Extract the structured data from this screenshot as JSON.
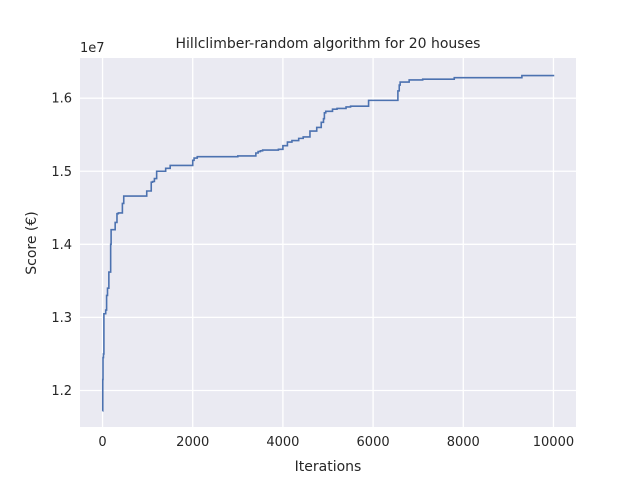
{
  "chart_data": {
    "type": "line",
    "title": "Hillclimber-random algorithm for 20 houses",
    "xlabel": "Iterations",
    "ylabel": "Score (€)",
    "y_offset_text": "1e7",
    "xlim": [
      -500,
      10500
    ],
    "ylim": [
      11500000,
      16550000
    ],
    "x_ticks": [
      0,
      2000,
      4000,
      6000,
      8000,
      10000
    ],
    "x_tick_labels": [
      "0",
      "2000",
      "4000",
      "6000",
      "8000",
      "10000"
    ],
    "y_ticks": [
      12000000,
      13000000,
      14000000,
      15000000,
      16000000
    ],
    "y_tick_labels": [
      "1.2",
      "1.3",
      "1.4",
      "1.5",
      "1.6"
    ],
    "grid": true,
    "background": "#eaeaf2",
    "line_color": "#4c72b0",
    "series": [
      {
        "step": "post",
        "x": [
          0,
          5,
          10,
          20,
          30,
          60,
          70,
          90,
          110,
          140,
          180,
          190,
          280,
          320,
          350,
          440,
          470,
          500,
          980,
          1080,
          1110,
          1150,
          1200,
          1400,
          1500,
          2000,
          2030,
          2100,
          3000,
          3050,
          3400,
          3450,
          3500,
          3550,
          3900,
          4000,
          4100,
          4200,
          4350,
          4450,
          4600,
          4750,
          4850,
          4900,
          4920,
          4950,
          5100,
          5200,
          5400,
          5500,
          5900,
          6000,
          6550,
          6580,
          6600,
          6800,
          7100,
          7800,
          9300,
          10000
        ],
        "y": [
          11720000,
          12150000,
          12450000,
          12500000,
          13050000,
          13050000,
          13100000,
          13300000,
          13400000,
          13620000,
          14000000,
          14200000,
          14300000,
          14420000,
          14430000,
          14560000,
          14660000,
          14660000,
          14730000,
          14850000,
          14860000,
          14900000,
          15000000,
          15040000,
          15080000,
          15150000,
          15180000,
          15200000,
          15210000,
          15210000,
          15250000,
          15270000,
          15280000,
          15290000,
          15300000,
          15350000,
          15400000,
          15420000,
          15450000,
          15470000,
          15550000,
          15600000,
          15670000,
          15720000,
          15800000,
          15820000,
          15850000,
          15860000,
          15880000,
          15890000,
          15970000,
          15970000,
          16100000,
          16180000,
          16220000,
          16250000,
          16260000,
          16280000,
          16310000,
          16320000
        ]
      }
    ]
  }
}
